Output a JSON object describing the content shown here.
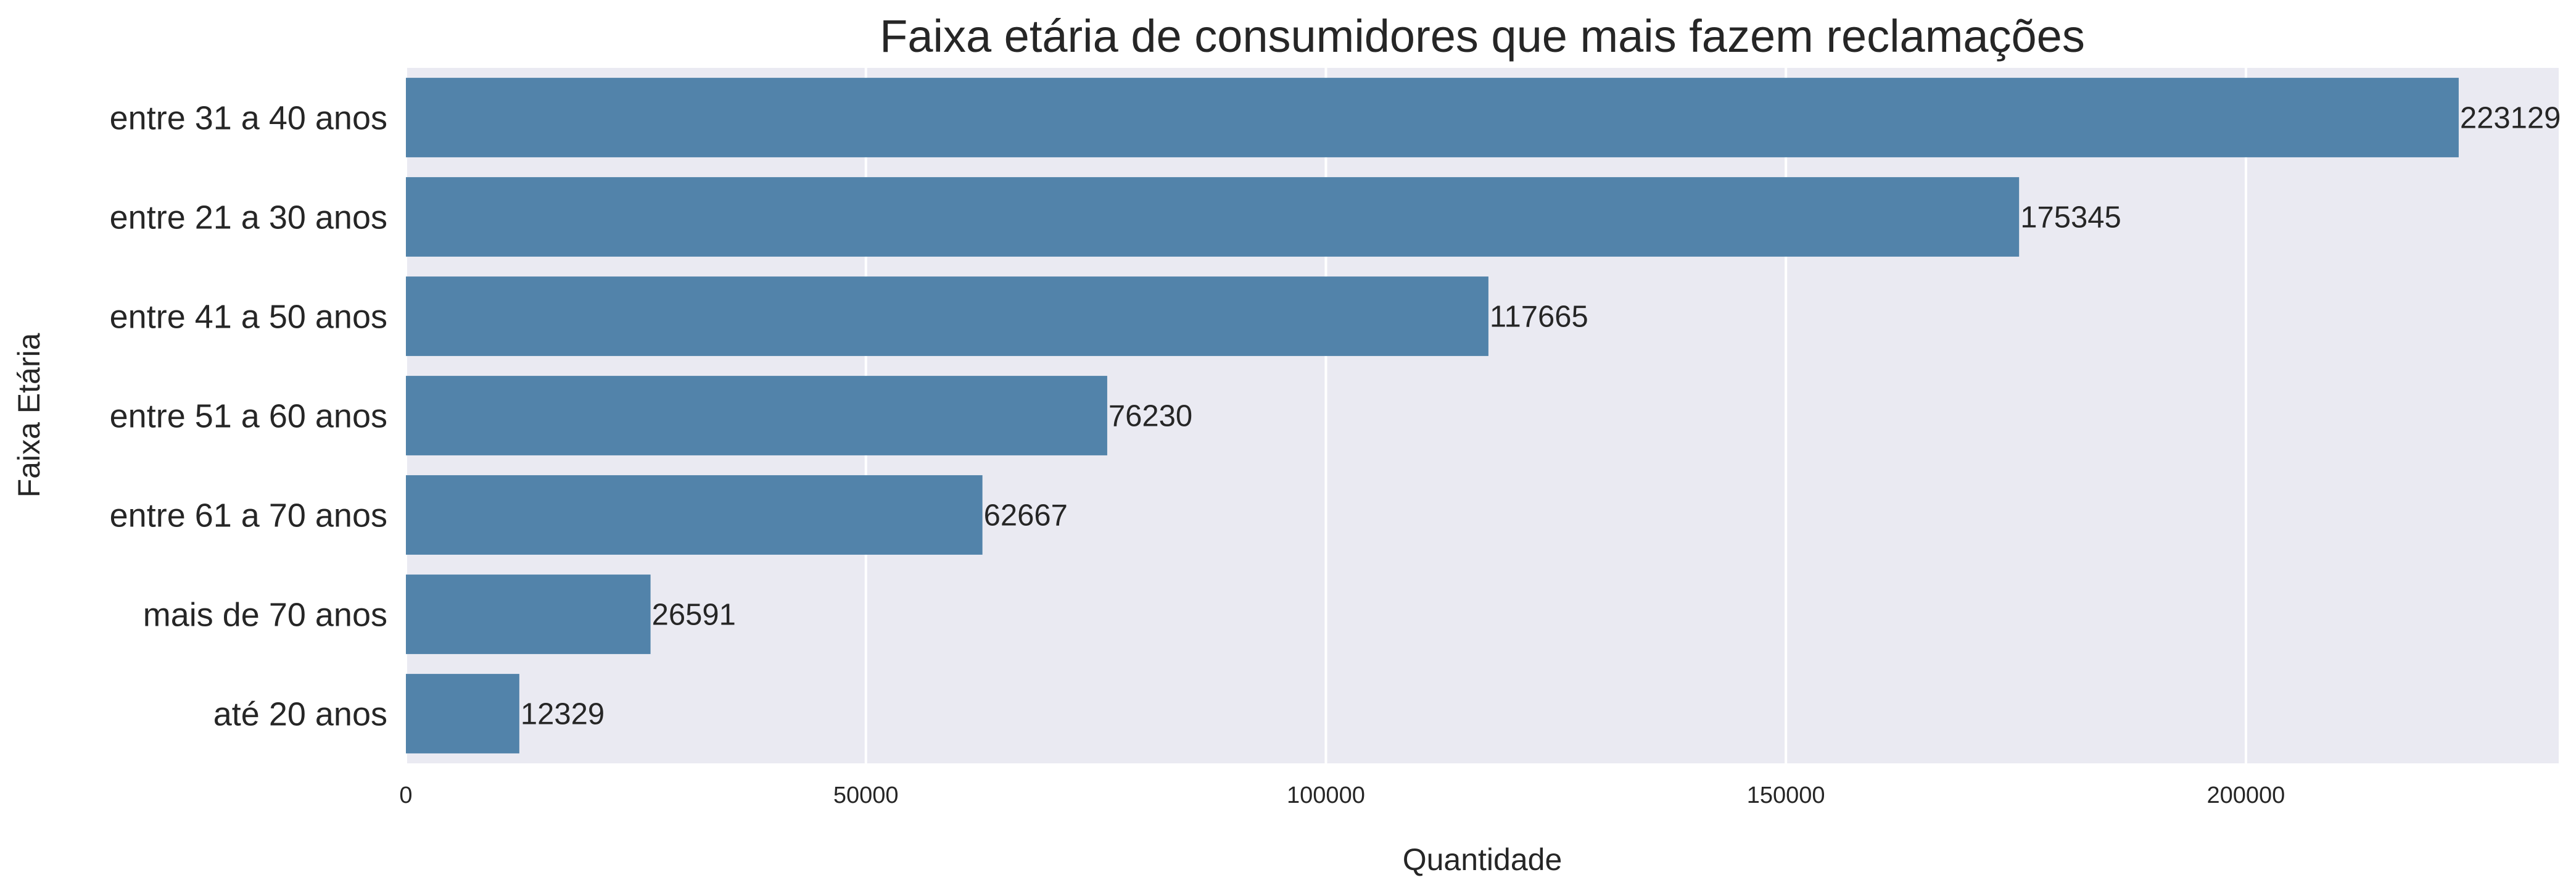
{
  "chart_data": {
    "type": "bar",
    "orientation": "horizontal",
    "title": "Faixa etária de consumidores que mais fazem reclamações",
    "xlabel": "Quantidade",
    "ylabel": "Faixa Etária",
    "categories": [
      "entre 31 a 40 anos",
      "entre 21 a 30 anos",
      "entre 41 a 50 anos",
      "entre 51 a 60 anos",
      "entre 61 a 70 anos",
      "mais de 70 anos",
      "até 20 anos"
    ],
    "values": [
      223129,
      175345,
      117665,
      76230,
      62667,
      26591,
      12329
    ],
    "xticks": [
      0,
      50000,
      100000,
      150000,
      200000
    ],
    "xlim": [
      0,
      234000
    ],
    "grid": true,
    "bar_color": "#5283aa",
    "background_color": "#eaeaf2"
  }
}
